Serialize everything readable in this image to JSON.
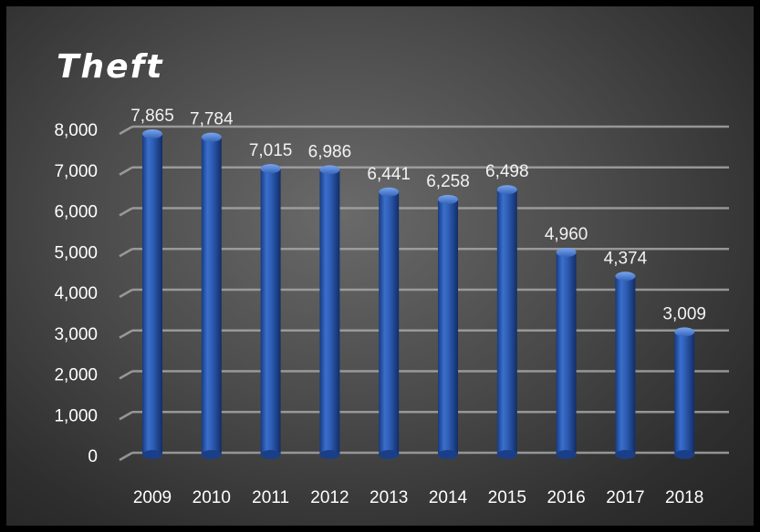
{
  "chart_data": {
    "type": "bar",
    "title": "Theft",
    "categories": [
      "2009",
      "2010",
      "2011",
      "2012",
      "2013",
      "2014",
      "2015",
      "2016",
      "2017",
      "2018"
    ],
    "values": [
      7865,
      7784,
      7015,
      6986,
      6441,
      6258,
      6498,
      4960,
      4374,
      3009
    ],
    "data_labels": [
      "7,865",
      "7,784",
      "7,015",
      "6,986",
      "6,441",
      "6,258",
      "6,498",
      "4,960",
      "4,374",
      "3,009"
    ],
    "y_ticks": [
      0,
      1000,
      2000,
      3000,
      4000,
      5000,
      6000,
      7000,
      8000
    ],
    "y_tick_labels": [
      "0",
      "1,000",
      "2,000",
      "3,000",
      "4,000",
      "5,000",
      "6,000",
      "7,000",
      "8,000"
    ],
    "ylim": [
      0,
      8000
    ],
    "xlabel": "",
    "ylabel": "",
    "grid": true,
    "legend": "none",
    "colors": {
      "bar": "#2f5fb3",
      "bar_highlight": "#5a8be0",
      "bar_shadow": "#17356f",
      "grid": "#a6a6a6",
      "text": "#ffffff"
    }
  }
}
